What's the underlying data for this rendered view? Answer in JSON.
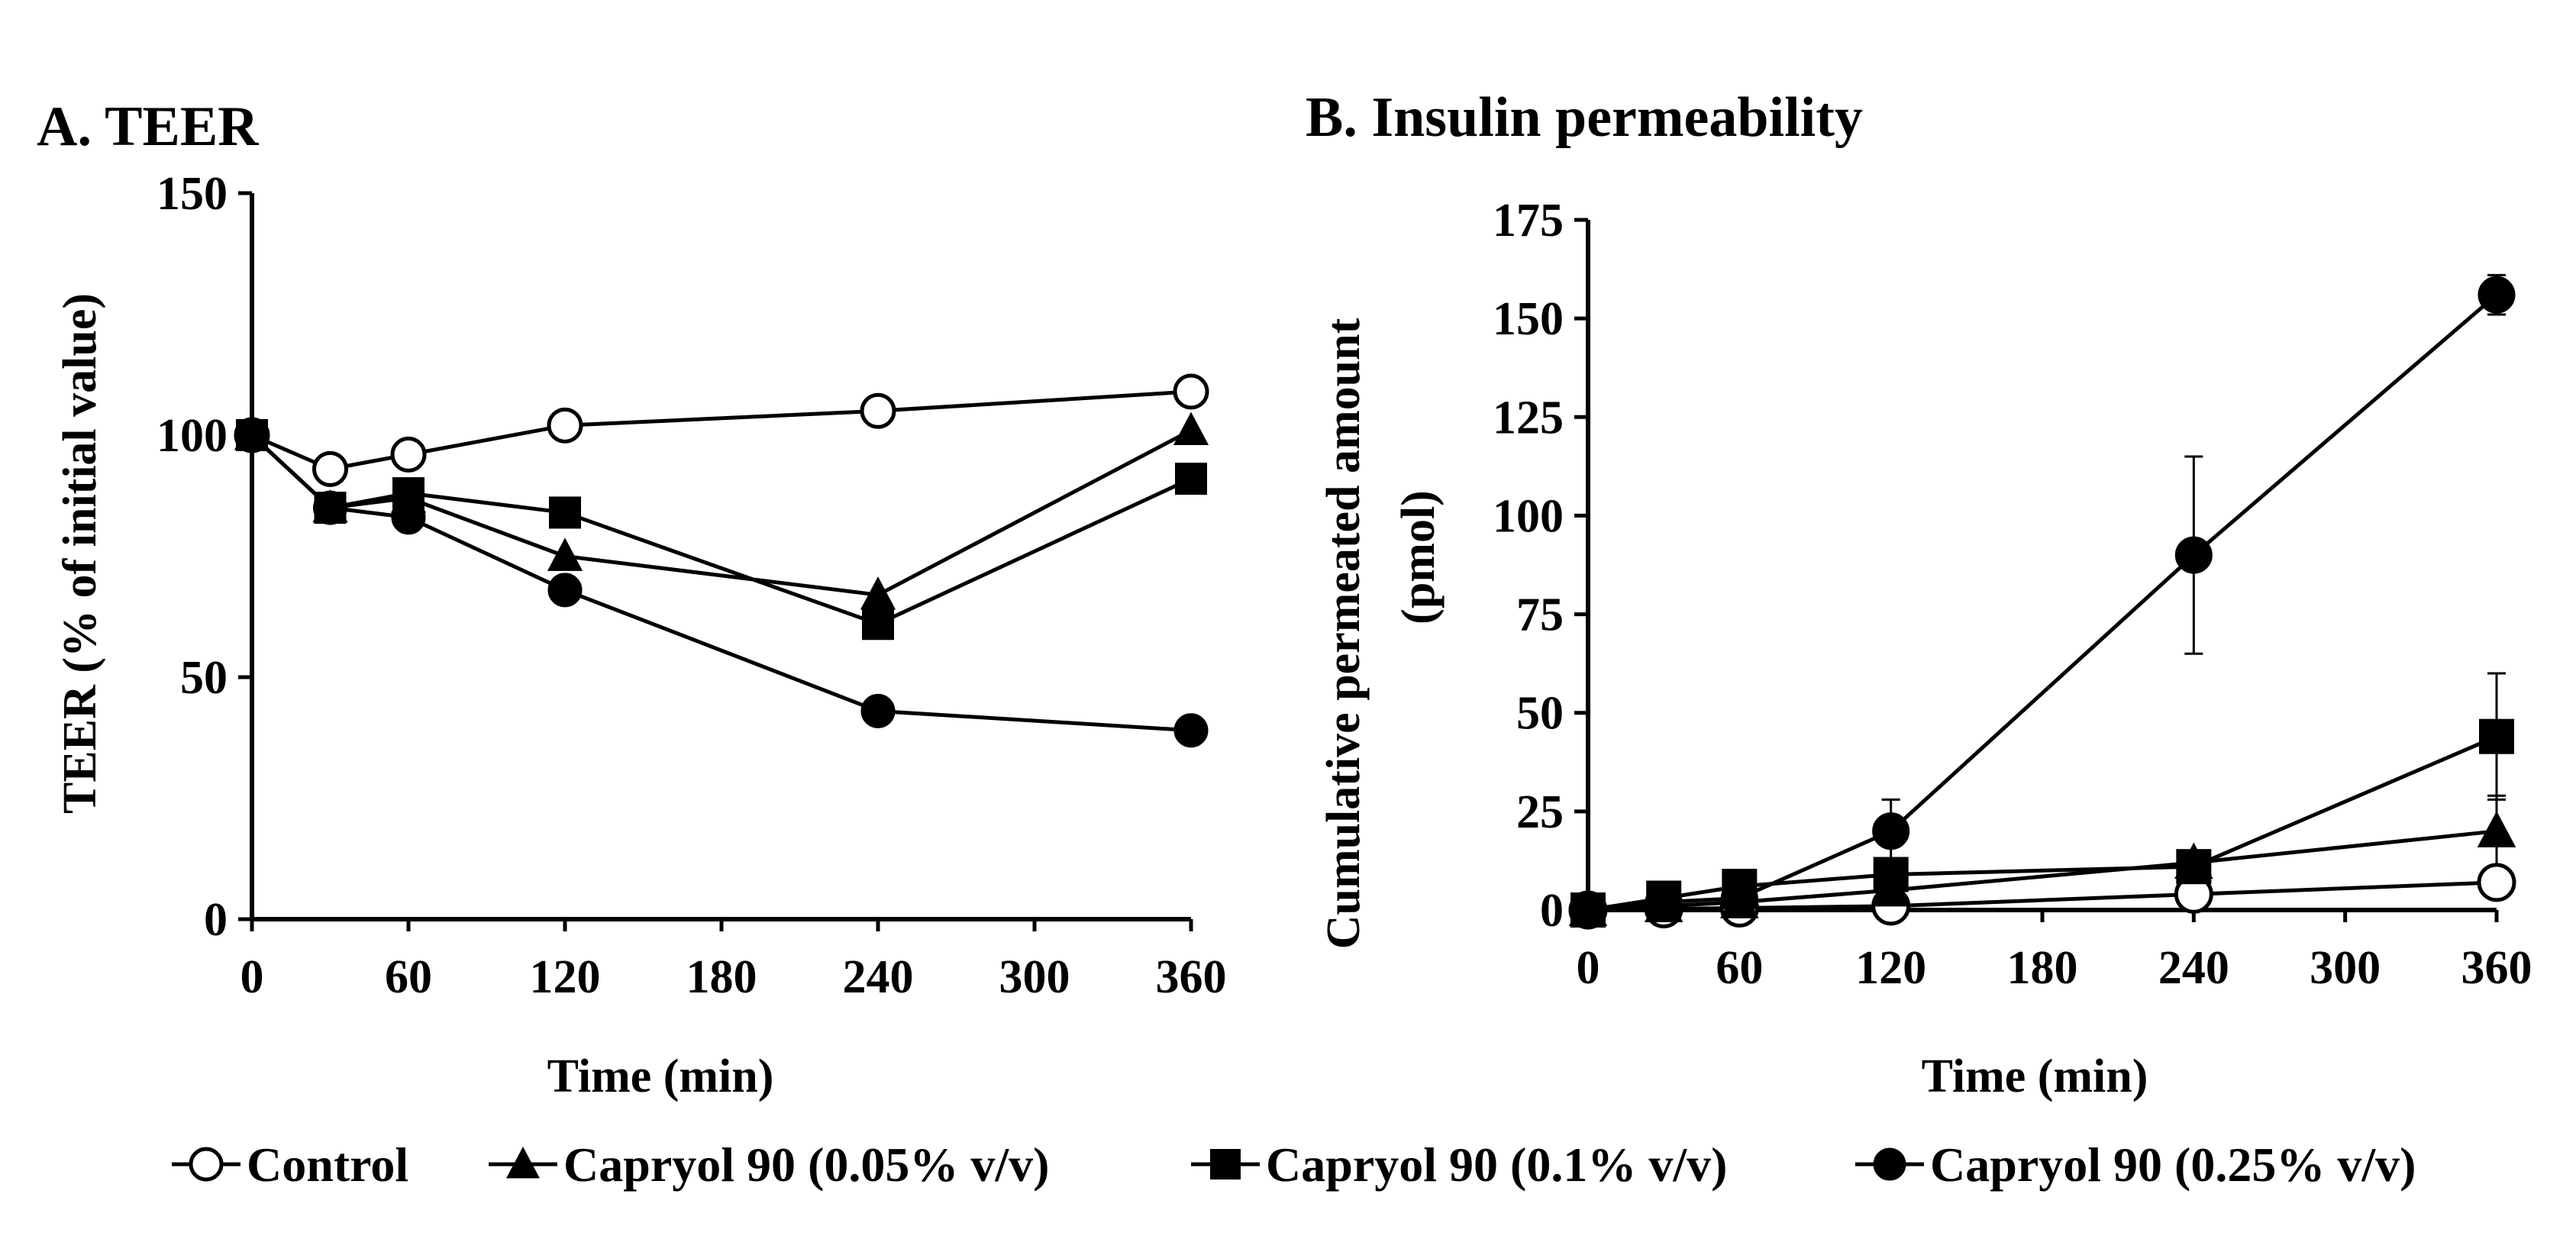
{
  "chart_data": [
    {
      "type": "line",
      "title": "A. TEER",
      "xlabel": "Time (min)",
      "ylabel": "TEER (% of initial value)",
      "xlim": [
        0,
        360
      ],
      "ylim": [
        0,
        150
      ],
      "xticks": [
        0,
        60,
        120,
        180,
        240,
        300,
        360
      ],
      "yticks": [
        0,
        50,
        100,
        150
      ],
      "x": [
        0,
        30,
        60,
        120,
        240,
        360
      ],
      "series": [
        {
          "name": "Control",
          "marker": "circle-open",
          "values": [
            100,
            93,
            96,
            102,
            105,
            109
          ]
        },
        {
          "name": "Capryol 90 (0.05% v/v)",
          "marker": "triangle",
          "values": [
            100,
            85,
            87,
            75,
            67,
            101
          ]
        },
        {
          "name": "Capryol 90 (0.1% v/v)",
          "marker": "square",
          "values": [
            100,
            85,
            88,
            84,
            61,
            91
          ]
        },
        {
          "name": "Capryol 90 (0.25% v/v)",
          "marker": "circle-filled",
          "values": [
            100,
            85,
            83,
            68,
            43,
            39
          ]
        }
      ]
    },
    {
      "type": "line",
      "title": "B. Insulin permeability",
      "xlabel": "Time (min)",
      "ylabel_line1": "Cumulative  permeated  amount",
      "ylabel_line2": "(pmol)",
      "xlim": [
        0,
        360
      ],
      "ylim": [
        0,
        175
      ],
      "xticks": [
        0,
        60,
        120,
        180,
        240,
        300,
        360
      ],
      "yticks": [
        0,
        25,
        50,
        75,
        100,
        125,
        150,
        175
      ],
      "x": [
        0,
        30,
        60,
        120,
        240,
        360
      ],
      "series": [
        {
          "name": "Control",
          "marker": "circle-open",
          "values": [
            0,
            0.3,
            0.5,
            1,
            4,
            7
          ],
          "errors": [
            0,
            0,
            0,
            0,
            1,
            1.5
          ]
        },
        {
          "name": "Capryol 90 (0.05% v/v)",
          "marker": "triangle",
          "values": [
            0,
            1,
            2,
            5,
            12,
            20
          ],
          "errors": [
            0,
            0,
            0,
            0.5,
            3,
            9
          ]
        },
        {
          "name": "Capryol 90 (0.1% v/v)",
          "marker": "square",
          "values": [
            0,
            3,
            6,
            9,
            11,
            44
          ],
          "errors": [
            0,
            0.5,
            0.5,
            1,
            2,
            16
          ]
        },
        {
          "name": "Capryol 90 (0.25% v/v)",
          "marker": "circle-filled",
          "values": [
            0,
            2,
            3,
            20,
            90,
            156
          ],
          "errors": [
            0,
            0,
            0,
            8,
            25,
            5
          ]
        }
      ]
    }
  ],
  "legend": [
    {
      "label": "Control",
      "marker": "circle-open"
    },
    {
      "label": "Capryol 90 (0.05% v/v)",
      "marker": "triangle"
    },
    {
      "label": "Capryol 90 (0.1% v/v)",
      "marker": "square"
    },
    {
      "label": "Capryol 90 (0.25% v/v)",
      "marker": "circle-filled"
    }
  ]
}
